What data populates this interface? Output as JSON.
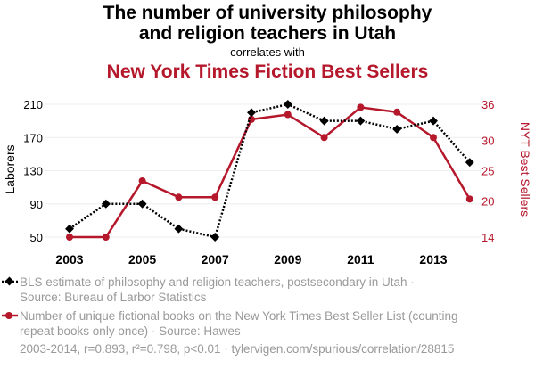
{
  "title_line1": "The number of university philosophy",
  "title_line2": "and religion teachers in Utah",
  "correlates": "correlates with",
  "title_series2": "New York Times Fiction Best Sellers",
  "colors": {
    "series1": "#000000",
    "series2": "#b5172b",
    "label_gray": "#999999"
  },
  "chart_data": {
    "type": "line",
    "x": [
      2003,
      2004,
      2005,
      2006,
      2007,
      2008,
      2009,
      2010,
      2011,
      2012,
      2013,
      2014
    ],
    "x_ticks": [
      "2003",
      "2005",
      "2007",
      "2009",
      "2011",
      "2013"
    ],
    "left_axis": {
      "label": "Laborers",
      "ticks": [
        "50",
        "90",
        "130",
        "170",
        "210"
      ],
      "range": [
        50,
        210
      ]
    },
    "right_axis": {
      "label": "NYT Best Sellers",
      "ticks": [
        "14",
        "20",
        "25",
        "30",
        "36"
      ],
      "range": [
        14,
        36
      ]
    },
    "series": [
      {
        "axis": "left",
        "style": "dotted",
        "marker": "diamond",
        "values": [
          60,
          90,
          90,
          60,
          50,
          200,
          210,
          190,
          190,
          180,
          190,
          140
        ]
      },
      {
        "axis": "right",
        "style": "solid",
        "marker": "circle",
        "values": [
          14,
          14,
          23.3,
          20.6,
          20.6,
          33.5,
          34.3,
          30.5,
          35.5,
          34.7,
          30.5,
          20.3
        ]
      }
    ],
    "grid": "horizontal"
  },
  "legend": {
    "item1_line1": "BLS estimate of philosophy and religion teachers, postsecondary in Utah ·",
    "item1_line2": "Source: Bureau of Larbor Statistics",
    "item2_line1": "Number of unique fictional books on the New York Times Best Seller List (counting",
    "item2_line2": "repeat books only once) · Source: Hawes"
  },
  "footer": "2003-2014, r=0.893, r²=0.798, p<0.01 · tylervigen.com/spurious/correlation/28815"
}
